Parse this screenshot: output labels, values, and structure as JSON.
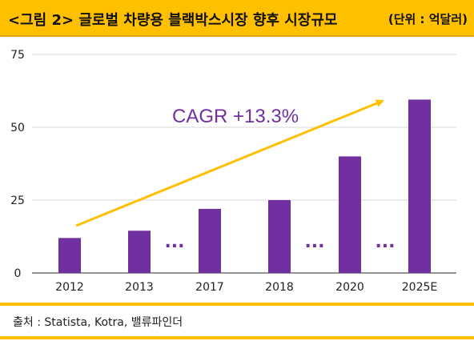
{
  "header": {
    "title": "<그림 2> 글로벌 차량용 블랙박스시장 향후 시장규모",
    "unit": "(단위 : 억달러)"
  },
  "source": "출처 : Statista, Kotra, 밸류파인더",
  "colors": {
    "bar": "#7030A0",
    "arrow": "#FFC000",
    "accent": "#FFC000",
    "annotation": "#7030A0"
  },
  "chart_data": {
    "type": "bar",
    "categories": [
      "2012",
      "2013",
      "2017",
      "2018",
      "2020",
      "2025E"
    ],
    "values": [
      12,
      14.5,
      22,
      25,
      40,
      59.5
    ],
    "ylim": [
      0,
      75
    ],
    "yticks": [
      "0",
      "25",
      "50",
      "75"
    ],
    "grid": true,
    "annotation": "CAGR +13.3%",
    "gap_marker": "..."
  }
}
